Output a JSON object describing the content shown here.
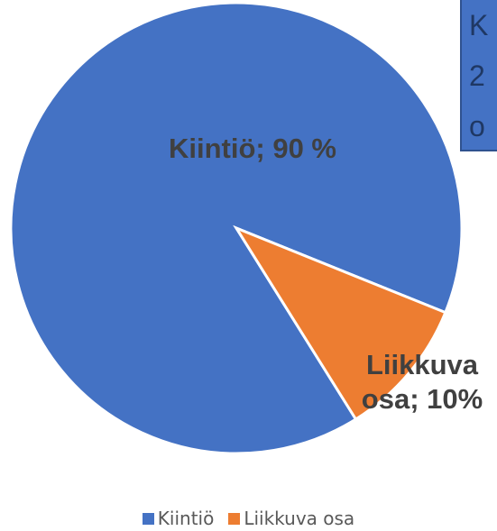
{
  "chart_data": {
    "type": "pie",
    "categories": [
      "Kiintiö",
      "Liikkuva osa"
    ],
    "values": [
      90,
      10
    ],
    "value_labels": [
      "Kiintiö; 90 %",
      "Liikkuva osa; 10%"
    ],
    "colors": [
      "#4472c4",
      "#ed7d31"
    ],
    "annotation": [
      "K",
      "2",
      "o"
    ],
    "legend": "bottom"
  }
}
